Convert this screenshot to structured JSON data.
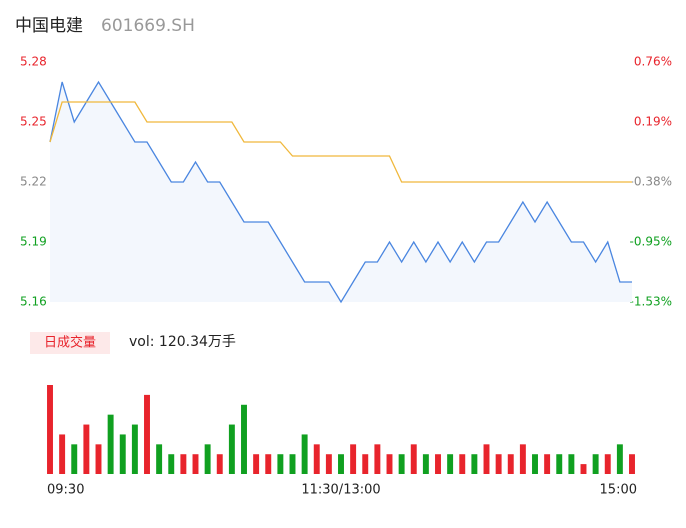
{
  "chart_data": {
    "type": "intraday",
    "title": "中国电建",
    "subtitle": "601669.SH",
    "xlim": [
      0,
      48
    ],
    "xticks": [
      {
        "value": 0,
        "label": "09:30"
      },
      {
        "value": 24,
        "label": "11:30/13:00"
      },
      {
        "value": 48,
        "label": "15:00"
      }
    ],
    "ylim": [
      5.16,
      5.28
    ],
    "yticks": [
      5.28,
      5.25,
      5.22,
      5.19,
      5.16
    ],
    "y2ticks": [
      {
        "value": 5.28,
        "label": "0.76%"
      },
      {
        "value": 5.25,
        "label": "0.19%"
      },
      {
        "value": 5.22,
        "label": "-0.38%"
      },
      {
        "value": 5.19,
        "label": "-0.95%"
      },
      {
        "value": 5.16,
        "label": "-1.53%"
      }
    ],
    "up_color": "#e8242c",
    "down_color": "#10a020",
    "flat_color": "#888888",
    "series": [
      {
        "name": "price",
        "color": "#4a86e0",
        "values": [
          5.24,
          5.27,
          5.25,
          5.26,
          5.27,
          5.26,
          5.25,
          5.24,
          5.24,
          5.23,
          5.22,
          5.22,
          5.23,
          5.22,
          5.22,
          5.21,
          5.2,
          5.2,
          5.2,
          5.19,
          5.18,
          5.17,
          5.17,
          5.17,
          5.16,
          5.17,
          5.18,
          5.18,
          5.19,
          5.18,
          5.19,
          5.18,
          5.19,
          5.18,
          5.19,
          5.18,
          5.19,
          5.19,
          5.2,
          5.21,
          5.2,
          5.21,
          5.2,
          5.19,
          5.19,
          5.18,
          5.19,
          5.17,
          5.17
        ]
      },
      {
        "name": "average",
        "color": "#f0b83c",
        "values": [
          5.24,
          5.26,
          5.26,
          5.26,
          5.26,
          5.26,
          5.26,
          5.26,
          5.25,
          5.25,
          5.25,
          5.25,
          5.25,
          5.25,
          5.25,
          5.25,
          5.24,
          5.24,
          5.24,
          5.24,
          5.233,
          5.233,
          5.233,
          5.233,
          5.233,
          5.233,
          5.233,
          5.233,
          5.233,
          5.22,
          5.22,
          5.22,
          5.22,
          5.22,
          5.22,
          5.22,
          5.22,
          5.22,
          5.22,
          5.22,
          5.22,
          5.22,
          5.22,
          5.22,
          5.22,
          5.22,
          5.22,
          5.22,
          5.22
        ]
      }
    ],
    "volume_title": "日成交量",
    "volume_label": "vol: 120.34万手",
    "volume": [
      9,
      4,
      3,
      5,
      3,
      6,
      4,
      5,
      8,
      3,
      2,
      2,
      2,
      3,
      2,
      5,
      7,
      2,
      2,
      2,
      2,
      4,
      3,
      2,
      2,
      3,
      2,
      3,
      2,
      2,
      3,
      2,
      2,
      2,
      2,
      2,
      3,
      2,
      2,
      3,
      2,
      2,
      2,
      2,
      1,
      2,
      2,
      3,
      2
    ]
  }
}
